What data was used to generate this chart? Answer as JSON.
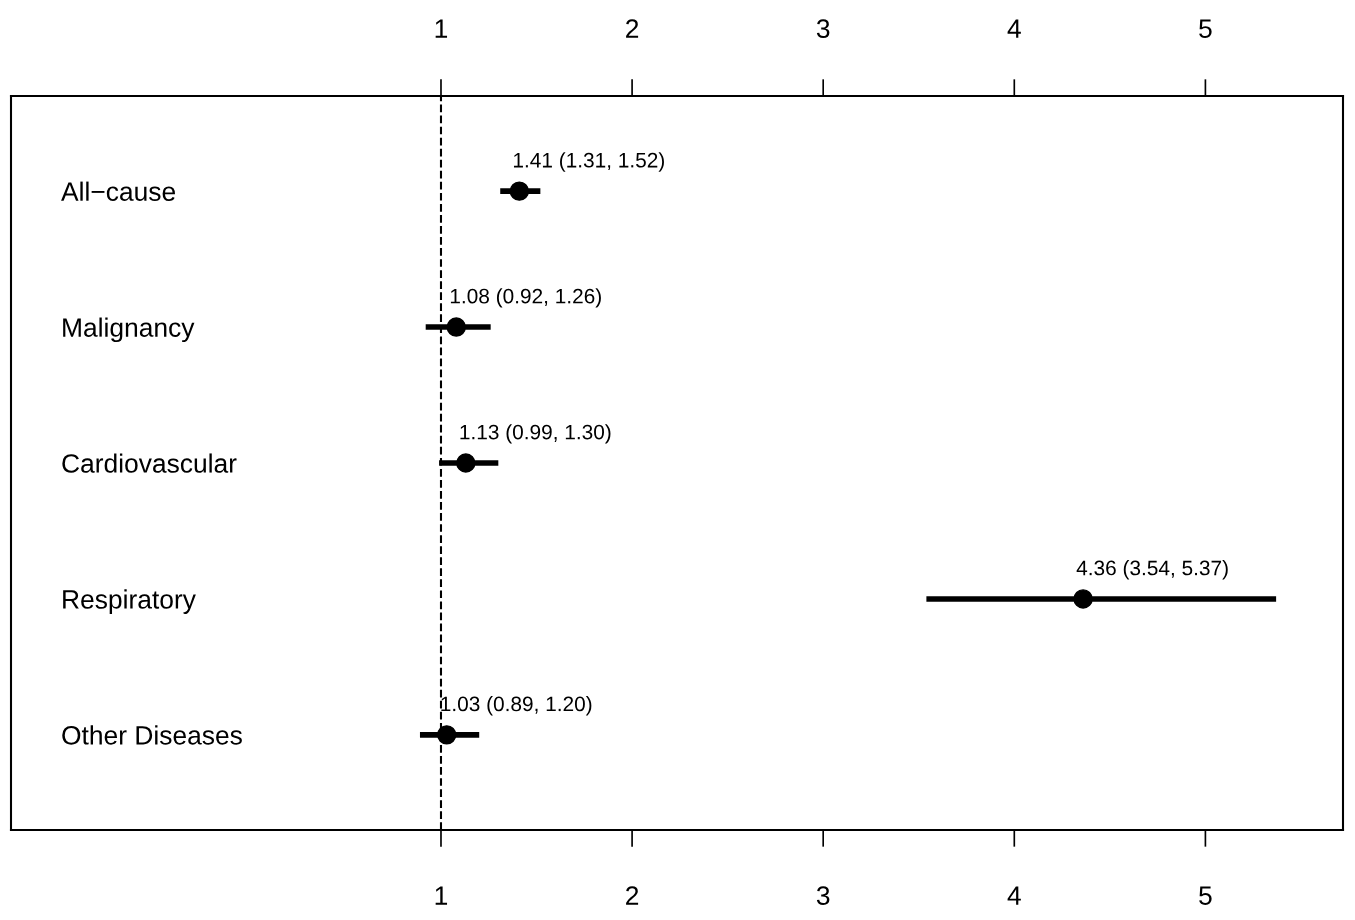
{
  "chart_data": {
    "type": "scatter",
    "orientation": "horizontal",
    "categories": [
      "All−cause",
      "Malignancy",
      "Cardiovascular",
      "Respiratory",
      "Other Diseases"
    ],
    "values": [
      1.41,
      1.08,
      1.13,
      4.36,
      1.03
    ],
    "errors": [
      [
        1.31,
        1.52
      ],
      [
        0.92,
        1.26
      ],
      [
        0.99,
        1.3
      ],
      [
        3.54,
        5.37
      ],
      [
        0.89,
        1.2
      ]
    ],
    "value_labels": [
      "1.41 (1.31, 1.52)",
      "1.08 (0.92, 1.26)",
      "1.13 (0.99, 1.30)",
      "4.36 (3.54, 5.37)",
      "1.03 (0.89, 1.20)"
    ],
    "color": "#000000",
    "marker": "circle",
    "xlim": [
      -1.25,
      5.72
    ],
    "xticks": [
      1,
      2,
      3,
      4,
      5
    ],
    "x2lim": [
      -1.25,
      5.72
    ],
    "x2ticks": [
      1,
      2,
      3,
      4,
      5
    ],
    "ref_lines": [
      {
        "axis": "x",
        "value": 1,
        "line_style": "dashed",
        "color": "#000000"
      }
    ],
    "grid": false,
    "legend": false
  }
}
